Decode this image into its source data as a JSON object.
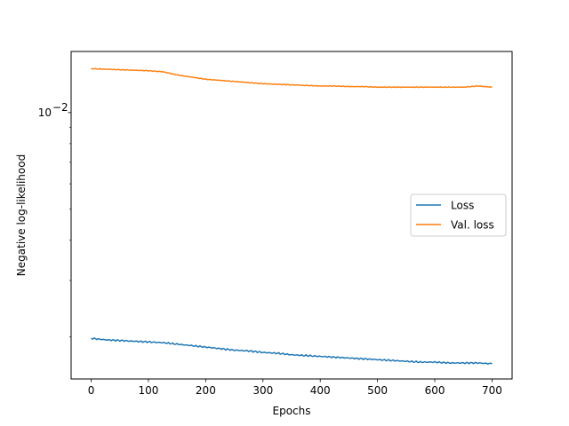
{
  "chart_data": {
    "type": "line",
    "xlabel": "Epochs",
    "ylabel": "Negative log-likelihood",
    "yscale": "log",
    "xlim": [
      -35,
      735
    ],
    "ylim": [
      0.00148,
      0.0155
    ],
    "x_ticks": [
      0,
      100,
      200,
      300,
      400,
      500,
      600,
      700
    ],
    "y_ticks": [
      {
        "value": 0.01,
        "label": "10",
        "exp": "−2"
      }
    ],
    "legend_position": "center-right",
    "series": [
      {
        "name": "Loss",
        "color": "#1f77b4",
        "x": [
          0,
          25,
          50,
          75,
          100,
          125,
          150,
          175,
          200,
          225,
          250,
          275,
          300,
          325,
          350,
          375,
          400,
          425,
          450,
          475,
          500,
          525,
          550,
          575,
          600,
          625,
          650,
          675,
          700
        ],
        "y": [
          0.00198,
          0.00196,
          0.00195,
          0.00194,
          0.00193,
          0.00192,
          0.0019,
          0.00188,
          0.00186,
          0.00184,
          0.00182,
          0.00181,
          0.00179,
          0.00178,
          0.00176,
          0.00175,
          0.00174,
          0.00173,
          0.00172,
          0.00171,
          0.0017,
          0.00169,
          0.00168,
          0.00167,
          0.00167,
          0.00166,
          0.00166,
          0.00166,
          0.00165
        ]
      },
      {
        "name": "Val. loss",
        "color": "#ff7f0e",
        "x": [
          0,
          25,
          50,
          75,
          100,
          125,
          150,
          175,
          200,
          225,
          250,
          275,
          300,
          325,
          350,
          375,
          400,
          425,
          450,
          475,
          500,
          525,
          550,
          575,
          600,
          625,
          650,
          675,
          700
        ],
        "y": [
          0.0137,
          0.01365,
          0.0136,
          0.01355,
          0.0135,
          0.0134,
          0.0131,
          0.0129,
          0.0127,
          0.0126,
          0.0125,
          0.0124,
          0.0123,
          0.01225,
          0.0122,
          0.01215,
          0.0121,
          0.0121,
          0.01205,
          0.01205,
          0.012,
          0.012,
          0.012,
          0.012,
          0.012,
          0.012,
          0.012,
          0.0121,
          0.012
        ]
      }
    ]
  }
}
